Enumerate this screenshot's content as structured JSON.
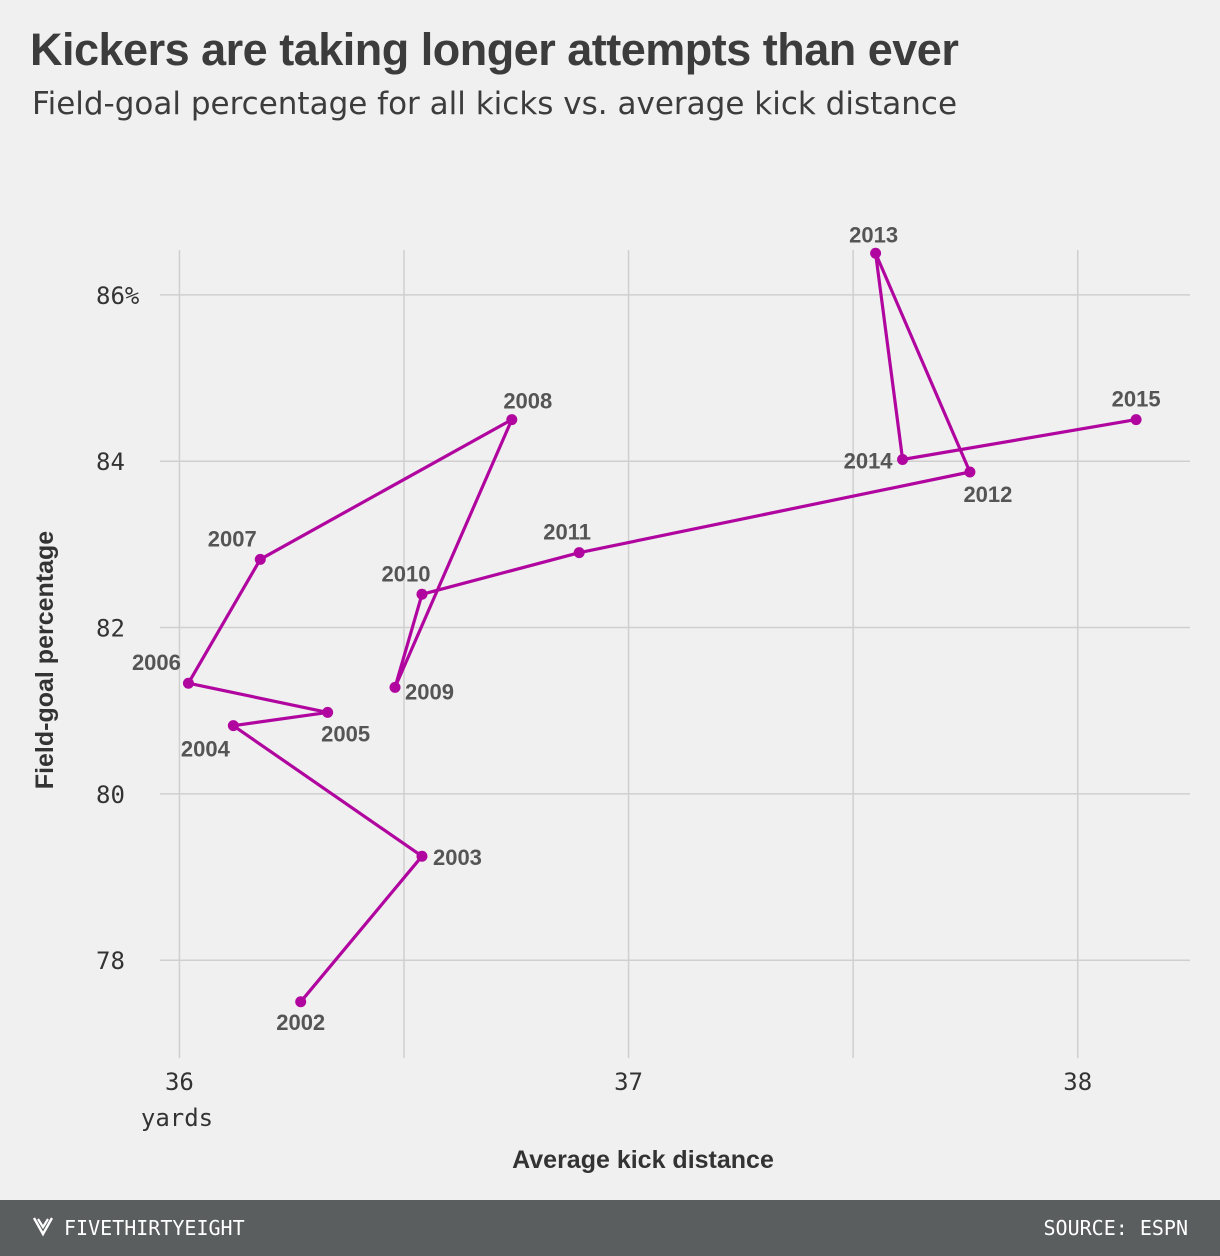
{
  "header": {
    "title": "Kickers are taking longer attempts than ever",
    "subtitle": "Field-goal percentage for all kicks vs. average kick distance"
  },
  "footer": {
    "brand": "FIVETHIRTYEIGHT",
    "brand_icon": "fivethirtyeight-logo-icon",
    "source": "SOURCE: ESPN"
  },
  "colors": {
    "series": "#b0069f",
    "grid": "#cfcfcf",
    "point_label": "#555555",
    "axis_text": "#333333",
    "footer_bg": "#5b5e5e"
  },
  "chart_data": {
    "type": "scatter",
    "connected": true,
    "xlabel": "Average kick distance",
    "ylabel": "Field-goal percentage",
    "x_unit_label": "yards",
    "xlim": [
      35.93,
      38.25
    ],
    "ylim": [
      76.8,
      86.9
    ],
    "x_ticks": [
      36,
      37,
      38
    ],
    "x_tick_labels": [
      "36",
      "37",
      "38"
    ],
    "x_minor_grid": [
      36.5,
      37.5
    ],
    "y_ticks": [
      78,
      80,
      82,
      84,
      86
    ],
    "y_tick_labels": [
      "78",
      "80",
      "82",
      "84",
      "86%"
    ],
    "grid": true,
    "points": [
      {
        "label": "2002",
        "x": 36.27,
        "y": 77.5
      },
      {
        "label": "2003",
        "x": 36.54,
        "y": 79.25
      },
      {
        "label": "2004",
        "x": 36.12,
        "y": 80.82
      },
      {
        "label": "2005",
        "x": 36.33,
        "y": 80.98
      },
      {
        "label": "2006",
        "x": 36.02,
        "y": 81.33
      },
      {
        "label": "2007",
        "x": 36.18,
        "y": 82.82
      },
      {
        "label": "2008",
        "x": 36.74,
        "y": 84.5
      },
      {
        "label": "2009",
        "x": 36.48,
        "y": 81.28
      },
      {
        "label": "2010",
        "x": 36.54,
        "y": 82.4
      },
      {
        "label": "2011",
        "x": 36.89,
        "y": 82.9
      },
      {
        "label": "2012",
        "x": 37.76,
        "y": 83.87
      },
      {
        "label": "2013",
        "x": 37.55,
        "y": 86.5
      },
      {
        "label": "2014",
        "x": 37.61,
        "y": 84.02
      },
      {
        "label": "2015",
        "x": 38.13,
        "y": 84.5
      }
    ]
  }
}
